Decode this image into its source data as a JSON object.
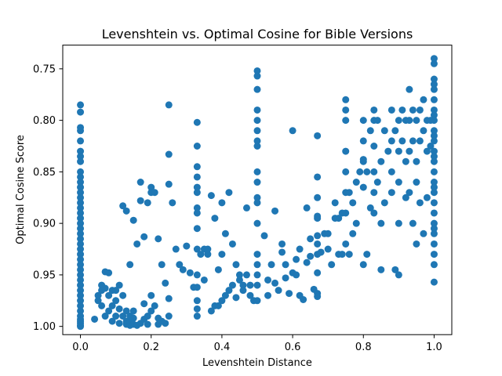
{
  "chart_data": {
    "type": "scatter",
    "title": "Levenshtein vs. Optimal Cosine for Bible Versions",
    "xlabel": "Levenshtein Distance",
    "ylabel": "Optimal Cosine Score",
    "xlim": [
      -0.05,
      1.05
    ],
    "ylim": [
      1.008,
      0.727
    ],
    "y_inverted": true,
    "xticks": [
      0.0,
      0.2,
      0.4,
      0.6,
      0.8,
      1.0
    ],
    "xtick_labels": [
      "0.0",
      "0.2",
      "0.4",
      "0.6",
      "0.8",
      "1.0"
    ],
    "yticks": [
      0.75,
      0.8,
      0.85,
      0.9,
      0.95,
      1.0
    ],
    "ytick_labels": [
      "0.75",
      "0.80",
      "0.85",
      "0.90",
      "0.95",
      "1.00"
    ],
    "grid": false,
    "marker_color": "#1f77b4",
    "series": [
      {
        "x": [
          0.0,
          0.0,
          0.0,
          0.0,
          0.0,
          0.0,
          0.0,
          0.0,
          0.0,
          0.0,
          0.0,
          0.0,
          0.0,
          0.0,
          0.0,
          0.0,
          0.0,
          0.0,
          0.0,
          0.0,
          0.0,
          0.0,
          0.0,
          0.0,
          0.0,
          0.0,
          0.0,
          0.0,
          0.0,
          0.0,
          0.0,
          0.0,
          0.0,
          0.0,
          0.0,
          0.0,
          0.0,
          0.0,
          0.0,
          0.0,
          0.0,
          0.0,
          0.04,
          0.05,
          0.05,
          0.06,
          0.06,
          0.06,
          0.07,
          0.07,
          0.07,
          0.08,
          0.08,
          0.08,
          0.09,
          0.09,
          0.09,
          0.1,
          0.1,
          0.1,
          0.11,
          0.11,
          0.11,
          0.12,
          0.12,
          0.13,
          0.13,
          0.13,
          0.14,
          0.14,
          0.14,
          0.15,
          0.15,
          0.15,
          0.16,
          0.17,
          0.18,
          0.18,
          0.19,
          0.19,
          0.2,
          0.2,
          0.21,
          0.22,
          0.22,
          0.23,
          0.24,
          0.25,
          0.25,
          0.12,
          0.13,
          0.14,
          0.15,
          0.16,
          0.17,
          0.17,
          0.18,
          0.19,
          0.2,
          0.2,
          0.21,
          0.22,
          0.23,
          0.24,
          0.25,
          0.25,
          0.25,
          0.26,
          0.27,
          0.28,
          0.29,
          0.3,
          0.31,
          0.32,
          0.33,
          0.33,
          0.34,
          0.35,
          0.36,
          0.33,
          0.33,
          0.33,
          0.33,
          0.33,
          0.33,
          0.33,
          0.33,
          0.33,
          0.33,
          0.33,
          0.33,
          0.33,
          0.36,
          0.37,
          0.38,
          0.39,
          0.4,
          0.4,
          0.41,
          0.42,
          0.43,
          0.44,
          0.45,
          0.46,
          0.47,
          0.48,
          0.49,
          0.38,
          0.4,
          0.42,
          0.44,
          0.46,
          0.48,
          0.35,
          0.37,
          0.39,
          0.41,
          0.43,
          0.45,
          0.47,
          0.5,
          0.5,
          0.5,
          0.5,
          0.5,
          0.5,
          0.5,
          0.5,
          0.5,
          0.5,
          0.5,
          0.5,
          0.5,
          0.5,
          0.5,
          0.5,
          0.5,
          0.5,
          0.52,
          0.53,
          0.54,
          0.55,
          0.56,
          0.57,
          0.58,
          0.59,
          0.6,
          0.61,
          0.62,
          0.63,
          0.64,
          0.65,
          0.66,
          0.67,
          0.68,
          0.69,
          0.7,
          0.55,
          0.57,
          0.6,
          0.62,
          0.65,
          0.67,
          0.53,
          0.58,
          0.61,
          0.64,
          0.67,
          0.67,
          0.67,
          0.67,
          0.67,
          0.67,
          0.67,
          0.67,
          0.67,
          0.7,
          0.71,
          0.72,
          0.73,
          0.74,
          0.75,
          0.75,
          0.75,
          0.75,
          0.75,
          0.75,
          0.75,
          0.75,
          0.76,
          0.77,
          0.78,
          0.79,
          0.8,
          0.8,
          0.8,
          0.8,
          0.81,
          0.82,
          0.83,
          0.83,
          0.83,
          0.83,
          0.83,
          0.83,
          0.84,
          0.85,
          0.86,
          0.87,
          0.88,
          0.88,
          0.88,
          0.89,
          0.9,
          0.9,
          0.9,
          0.91,
          0.91,
          0.92,
          0.92,
          0.93,
          0.93,
          0.93,
          0.94,
          0.94,
          0.95,
          0.95,
          0.95,
          0.96,
          0.96,
          0.97,
          0.97,
          0.98,
          0.98,
          0.99,
          0.99,
          0.72,
          0.74,
          0.76,
          0.78,
          0.8,
          0.82,
          0.84,
          0.86,
          0.88,
          0.9,
          0.92,
          0.94,
          0.96,
          0.98,
          0.73,
          0.77,
          0.81,
          0.85,
          0.89,
          0.93,
          0.97,
          0.8,
          0.85,
          0.9,
          0.95,
          1.0,
          1.0,
          1.0,
          1.0,
          1.0,
          1.0,
          1.0,
          1.0,
          1.0,
          1.0,
          1.0,
          1.0,
          1.0,
          1.0,
          1.0,
          1.0,
          1.0,
          1.0,
          1.0,
          1.0,
          1.0,
          1.0,
          1.0,
          1.0,
          1.0,
          1.0,
          1.0,
          1.0
        ],
        "y": [
          0.785,
          0.792,
          0.807,
          0.81,
          0.82,
          0.83,
          0.835,
          0.84,
          0.85,
          0.855,
          0.86,
          0.865,
          0.87,
          0.875,
          0.88,
          0.885,
          0.89,
          0.895,
          0.9,
          0.905,
          0.91,
          0.915,
          0.92,
          0.925,
          0.93,
          0.935,
          0.94,
          0.945,
          0.95,
          0.955,
          0.96,
          0.965,
          0.97,
          0.975,
          0.98,
          0.985,
          0.99,
          0.993,
          0.995,
          0.997,
          0.999,
          1.0,
          0.993,
          0.97,
          0.975,
          0.96,
          0.965,
          0.98,
          0.947,
          0.963,
          0.99,
          0.948,
          0.97,
          0.985,
          0.965,
          0.98,
          0.995,
          0.965,
          0.975,
          0.99,
          0.96,
          0.983,
          0.997,
          0.97,
          0.99,
          0.985,
          0.995,
          0.998,
          0.99,
          0.996,
          0.999,
          0.985,
          0.992,
          0.998,
          0.999,
          0.997,
          0.978,
          0.993,
          0.99,
          0.998,
          0.97,
          0.985,
          0.98,
          0.992,
          0.998,
          0.995,
          0.997,
          0.973,
          0.99,
          0.883,
          0.888,
          0.94,
          0.897,
          0.92,
          0.86,
          0.878,
          0.913,
          0.88,
          0.865,
          0.87,
          0.87,
          0.915,
          0.94,
          0.958,
          0.862,
          0.833,
          0.785,
          0.88,
          0.925,
          0.94,
          0.945,
          0.922,
          0.948,
          0.962,
          0.87,
          0.89,
          0.93,
          0.925,
          0.93,
          0.802,
          0.825,
          0.845,
          0.855,
          0.865,
          0.885,
          0.905,
          0.925,
          0.95,
          0.962,
          0.975,
          0.983,
          0.99,
          0.925,
          0.873,
          0.895,
          0.945,
          0.88,
          0.93,
          0.91,
          0.87,
          0.92,
          0.94,
          0.95,
          0.96,
          0.885,
          0.97,
          0.975,
          0.98,
          0.975,
          0.965,
          0.972,
          0.965,
          0.96,
          0.955,
          0.985,
          0.98,
          0.97,
          0.96,
          0.955,
          0.95,
          0.752,
          0.757,
          0.77,
          0.79,
          0.8,
          0.81,
          0.82,
          0.825,
          0.85,
          0.86,
          0.875,
          0.88,
          0.9,
          0.93,
          0.94,
          0.95,
          0.96,
          0.975,
          0.912,
          0.955,
          0.94,
          0.958,
          0.965,
          0.928,
          0.953,
          0.968,
          0.948,
          0.935,
          0.97,
          0.974,
          0.938,
          0.932,
          0.964,
          0.92,
          0.928,
          0.91,
          0.925,
          0.888,
          0.92,
          0.81,
          0.925,
          0.915,
          0.893,
          0.97,
          0.94,
          0.95,
          0.885,
          0.815,
          0.855,
          0.875,
          0.895,
          0.912,
          0.93,
          0.948,
          0.968,
          0.971,
          0.91,
          0.94,
          0.88,
          0.895,
          0.93,
          0.78,
          0.79,
          0.8,
          0.83,
          0.85,
          0.87,
          0.89,
          0.92,
          0.93,
          0.88,
          0.86,
          0.85,
          0.84,
          0.8,
          0.82,
          0.838,
          0.85,
          0.81,
          0.79,
          0.8,
          0.825,
          0.85,
          0.87,
          0.89,
          0.8,
          0.84,
          0.81,
          0.83,
          0.79,
          0.82,
          0.85,
          0.81,
          0.8,
          0.83,
          0.86,
          0.79,
          0.82,
          0.8,
          0.84,
          0.77,
          0.8,
          0.83,
          0.79,
          0.82,
          0.8,
          0.84,
          0.86,
          0.79,
          0.82,
          0.78,
          0.81,
          0.8,
          0.83,
          0.8,
          0.825,
          0.895,
          0.89,
          0.87,
          0.9,
          0.865,
          0.885,
          0.86,
          0.88,
          0.87,
          0.9,
          0.875,
          0.9,
          0.88,
          0.875,
          0.93,
          0.91,
          0.93,
          0.9,
          0.945,
          0.87,
          0.91,
          0.94,
          0.945,
          0.95,
          0.92,
          0.74,
          0.745,
          0.76,
          0.765,
          0.77,
          0.78,
          0.79,
          0.795,
          0.8,
          0.81,
          0.815,
          0.82,
          0.83,
          0.835,
          0.84,
          0.85,
          0.86,
          0.865,
          0.87,
          0.88,
          0.89,
          0.9,
          0.905,
          0.91,
          0.92,
          0.93,
          0.94,
          0.957
        ]
      }
    ]
  }
}
